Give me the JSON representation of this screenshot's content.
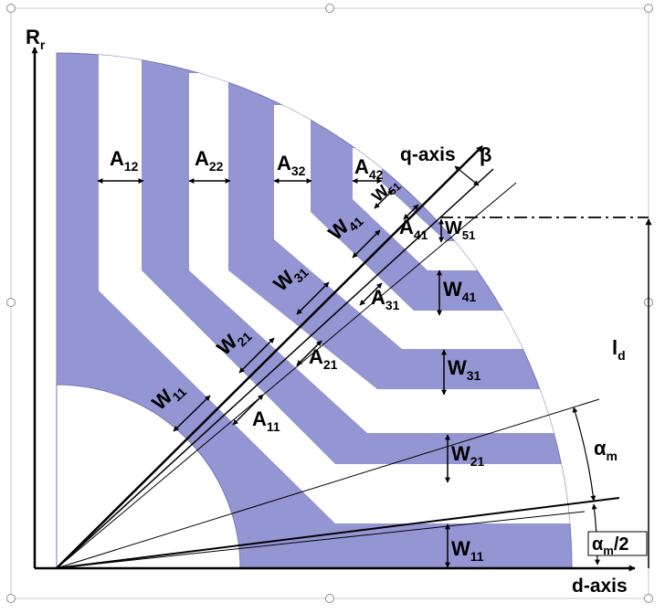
{
  "colors": {
    "lamination": "#9495D3",
    "barrier": "#ffffff",
    "line": "#000000",
    "handle": "#7f7f7f"
  },
  "axes": {
    "rotor_radius": {
      "main": "R",
      "sub": "r"
    },
    "d_axis": "d-axis",
    "q_axis": "q-axis",
    "beta": "β",
    "l_d": {
      "main": "l",
      "sub": "d"
    },
    "alpha_m": {
      "main": "α",
      "sub": "m"
    },
    "alpha_m_half": {
      "main": "α",
      "sub": "m",
      "suffix": "/2"
    }
  },
  "dimension_labels": {
    "A12": {
      "main": "A",
      "sub": "12"
    },
    "A22": {
      "main": "A",
      "sub": "22"
    },
    "A32": {
      "main": "A",
      "sub": "32"
    },
    "A42": {
      "main": "A",
      "sub": "42"
    },
    "A11": {
      "main": "A",
      "sub": "11"
    },
    "A21": {
      "main": "A",
      "sub": "21"
    },
    "A31": {
      "main": "A",
      "sub": "31"
    },
    "A41": {
      "main": "A",
      "sub": "41"
    },
    "W11_q": {
      "main": "W",
      "sub": "11"
    },
    "W21_q": {
      "main": "W",
      "sub": "21"
    },
    "W31_q": {
      "main": "W",
      "sub": "31"
    },
    "W41_q": {
      "main": "W",
      "sub": "41"
    },
    "W51_q": {
      "main": "W",
      "sub": "51"
    },
    "W11_d": {
      "main": "W",
      "sub": "11"
    },
    "W21_d": {
      "main": "W",
      "sub": "21"
    },
    "W31_d": {
      "main": "W",
      "sub": "31"
    },
    "W41_d": {
      "main": "W",
      "sub": "41"
    },
    "W51_d": {
      "main": "W",
      "sub": "51"
    }
  }
}
